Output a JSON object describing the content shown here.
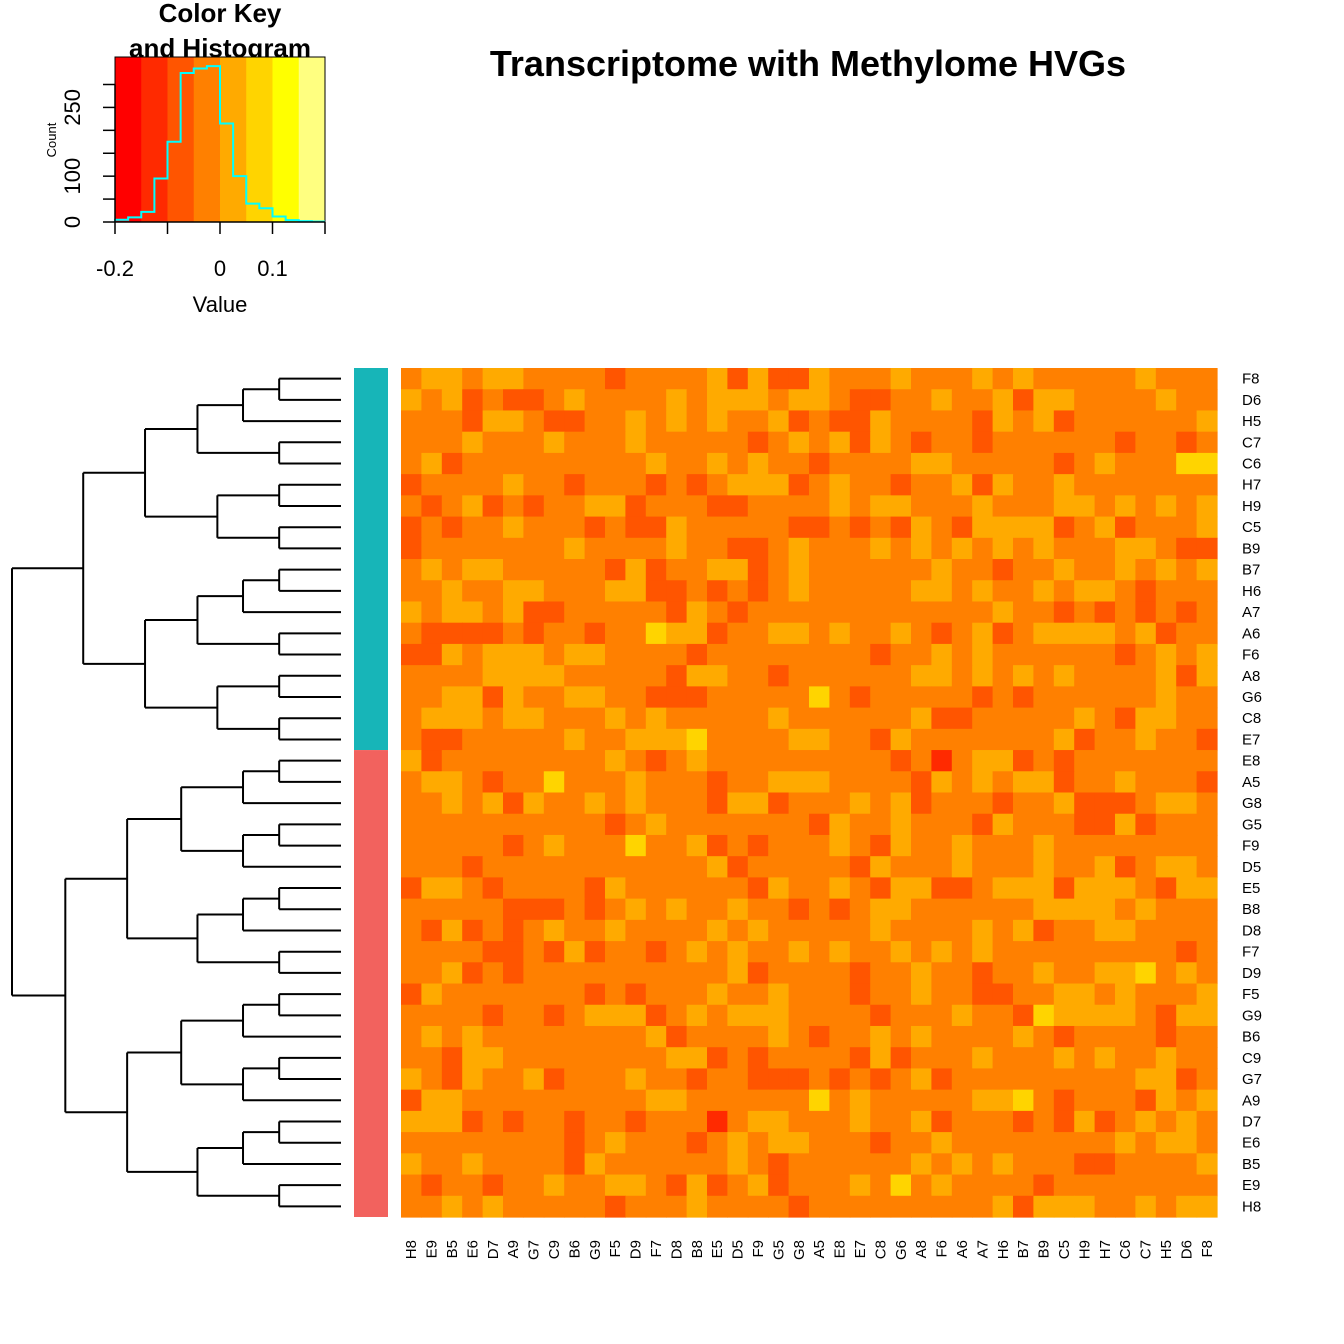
{
  "chart_data": [
    {
      "type": "heatmap",
      "title": "Transcriptome with Methylome HVGs",
      "row_labels": [
        "F8",
        "D6",
        "H5",
        "C7",
        "C6",
        "H7",
        "H9",
        "C5",
        "B9",
        "B7",
        "H6",
        "A7",
        "A6",
        "F6",
        "A8",
        "G6",
        "C8",
        "E7",
        "E8",
        "A5",
        "G8",
        "G5",
        "F9",
        "D5",
        "E5",
        "B8",
        "D8",
        "F7",
        "D9",
        "F5",
        "G9",
        "B6",
        "C9",
        "G7",
        "A9",
        "D7",
        "E6",
        "B5",
        "E9",
        "H8"
      ],
      "column_labels": [
        "H8",
        "E9",
        "B5",
        "E6",
        "D7",
        "A9",
        "G7",
        "C9",
        "B6",
        "G9",
        "F5",
        "D9",
        "F7",
        "D8",
        "B8",
        "E5",
        "D5",
        "F9",
        "G5",
        "G8",
        "A5",
        "E8",
        "E7",
        "C8",
        "G6",
        "A8",
        "F6",
        "A6",
        "A7",
        "H6",
        "B7",
        "B9",
        "C5",
        "H9",
        "H7",
        "C6",
        "C7",
        "H5",
        "D6",
        "F8"
      ],
      "row_groups": [
        {
          "color": "#17b5b8",
          "rows": 18
        },
        {
          "color": "#f2625e",
          "rows": 22
        }
      ],
      "colormap": [
        "#ff0000",
        "#ff2a00",
        "#ff5500",
        "#ff8000",
        "#ffaa00",
        "#ffd400",
        "#ffff00",
        "#ffff80"
      ],
      "value_range": [
        -0.2,
        0.2
      ],
      "seed": 20240607,
      "dendrogram": "rows"
    },
    {
      "type": "bar",
      "title": "Color Key\nand Histogram",
      "xlabel": "Value",
      "ylabel": "Count",
      "x_ticks": [
        "-0.2",
        "0",
        "0.1"
      ],
      "y_ticks": [
        "0",
        "100",
        "250"
      ],
      "bins": [
        -0.2,
        -0.175,
        -0.15,
        -0.125,
        -0.1,
        -0.075,
        -0.05,
        -0.025,
        0,
        0.025,
        0.05,
        0.075,
        0.1,
        0.125,
        0.15,
        0.175,
        0.2
      ],
      "counts": [
        5,
        10,
        22,
        95,
        175,
        325,
        335,
        340,
        215,
        100,
        40,
        30,
        12,
        4,
        2,
        1
      ],
      "line_color": "#00ffff"
    }
  ]
}
